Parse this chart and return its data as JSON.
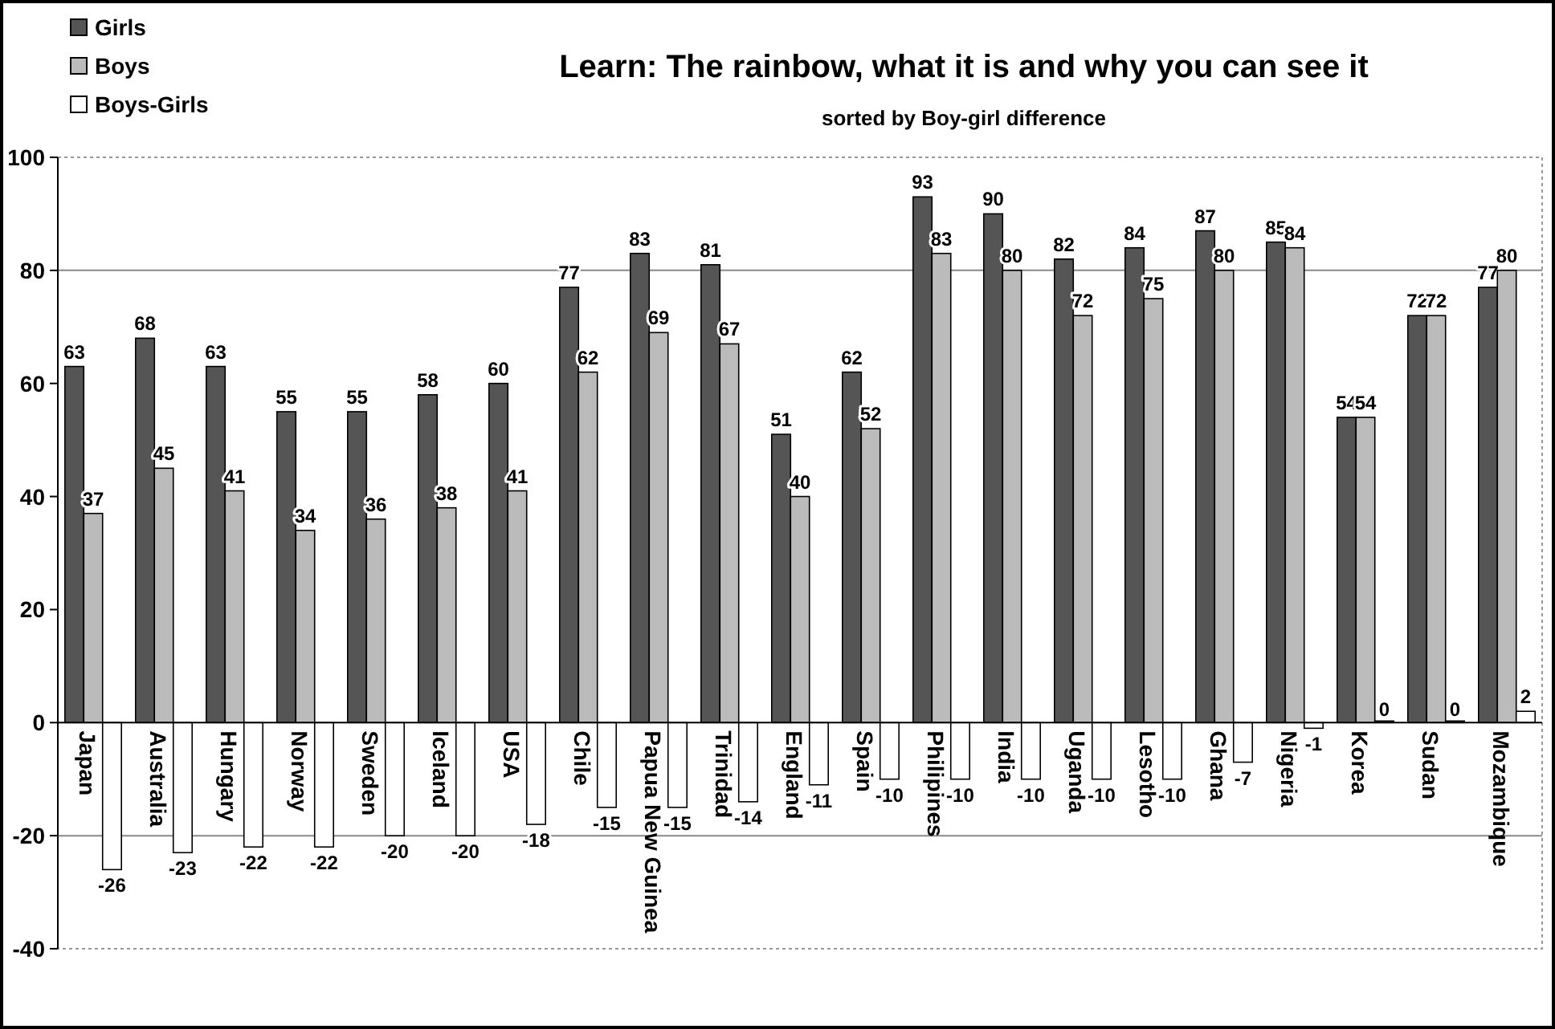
{
  "chart_data": {
    "type": "bar",
    "title": "Learn: The rainbow, what it is and why you can see it",
    "subtitle": "sorted by Boy-girl difference",
    "categories": [
      "Japan",
      "Australia",
      "Hungary",
      "Norway",
      "Sweden",
      "Iceland",
      "USA",
      "Chile",
      "Papua New Guinea",
      "Trinidad",
      "England",
      "Spain",
      "Philipines",
      "India",
      "Uganda",
      "Lesotho",
      "Ghana",
      "Nigeria",
      "Korea",
      "Sudan",
      "Mozambique"
    ],
    "series": [
      {
        "name": "Girls",
        "color": "#555555",
        "values": [
          63,
          68,
          63,
          55,
          55,
          58,
          60,
          77,
          83,
          81,
          51,
          62,
          93,
          90,
          82,
          84,
          87,
          85,
          54,
          72,
          77
        ]
      },
      {
        "name": "Boys",
        "color": "#bbbbbb",
        "values": [
          37,
          45,
          41,
          34,
          36,
          38,
          41,
          62,
          69,
          67,
          40,
          52,
          83,
          80,
          72,
          75,
          80,
          84,
          54,
          72,
          80
        ]
      },
      {
        "name": "Boys-Girls",
        "color": "#ffffff",
        "values": [
          -26,
          -23,
          -22,
          -22,
          -20,
          -20,
          -18,
          -15,
          -15,
          -14,
          -11,
          -10,
          -10,
          -10,
          -10,
          -10,
          -7,
          -1,
          0,
          0,
          2
        ]
      }
    ],
    "ylim": [
      -40,
      100
    ],
    "yticks": [
      -40,
      -20,
      0,
      20,
      40,
      60,
      80,
      100
    ],
    "ref_lines": [
      {
        "axis": "y",
        "value": 80,
        "color": "#888888"
      },
      {
        "axis": "y",
        "value": -20,
        "color": "#888888"
      }
    ],
    "data_labels": true,
    "legend": "top left"
  }
}
